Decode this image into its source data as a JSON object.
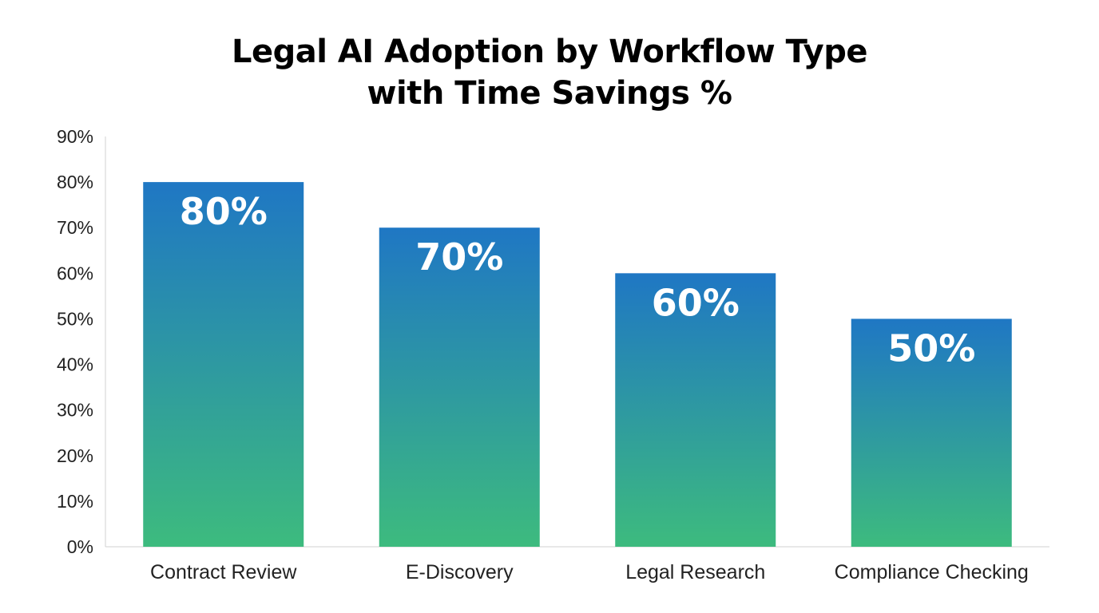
{
  "chart_data": {
    "type": "bar",
    "title_lines": [
      "Legal AI Adoption by Workflow Type",
      "with Time Savings %"
    ],
    "categories": [
      "Contract Review",
      "E-Discovery",
      "Legal Research",
      "Compliance Checking"
    ],
    "values": [
      80,
      70,
      60,
      50
    ],
    "data_labels": [
      "80%",
      "70%",
      "60%",
      "50%"
    ],
    "y_ticks": [
      0,
      10,
      20,
      30,
      40,
      50,
      60,
      70,
      80,
      90
    ],
    "y_tick_labels": [
      "0%",
      "10%",
      "20%",
      "30%",
      "40%",
      "50%",
      "60%",
      "70%",
      "80%",
      "90%"
    ],
    "ylim": [
      0,
      90
    ],
    "xlabel": "",
    "ylabel": "",
    "grid": false,
    "legend": "none",
    "colors": {
      "bar_top": "#1f77c4",
      "bar_bottom": "#3dbb7e",
      "axis": "#d0d0d0",
      "text": "#222222"
    }
  }
}
